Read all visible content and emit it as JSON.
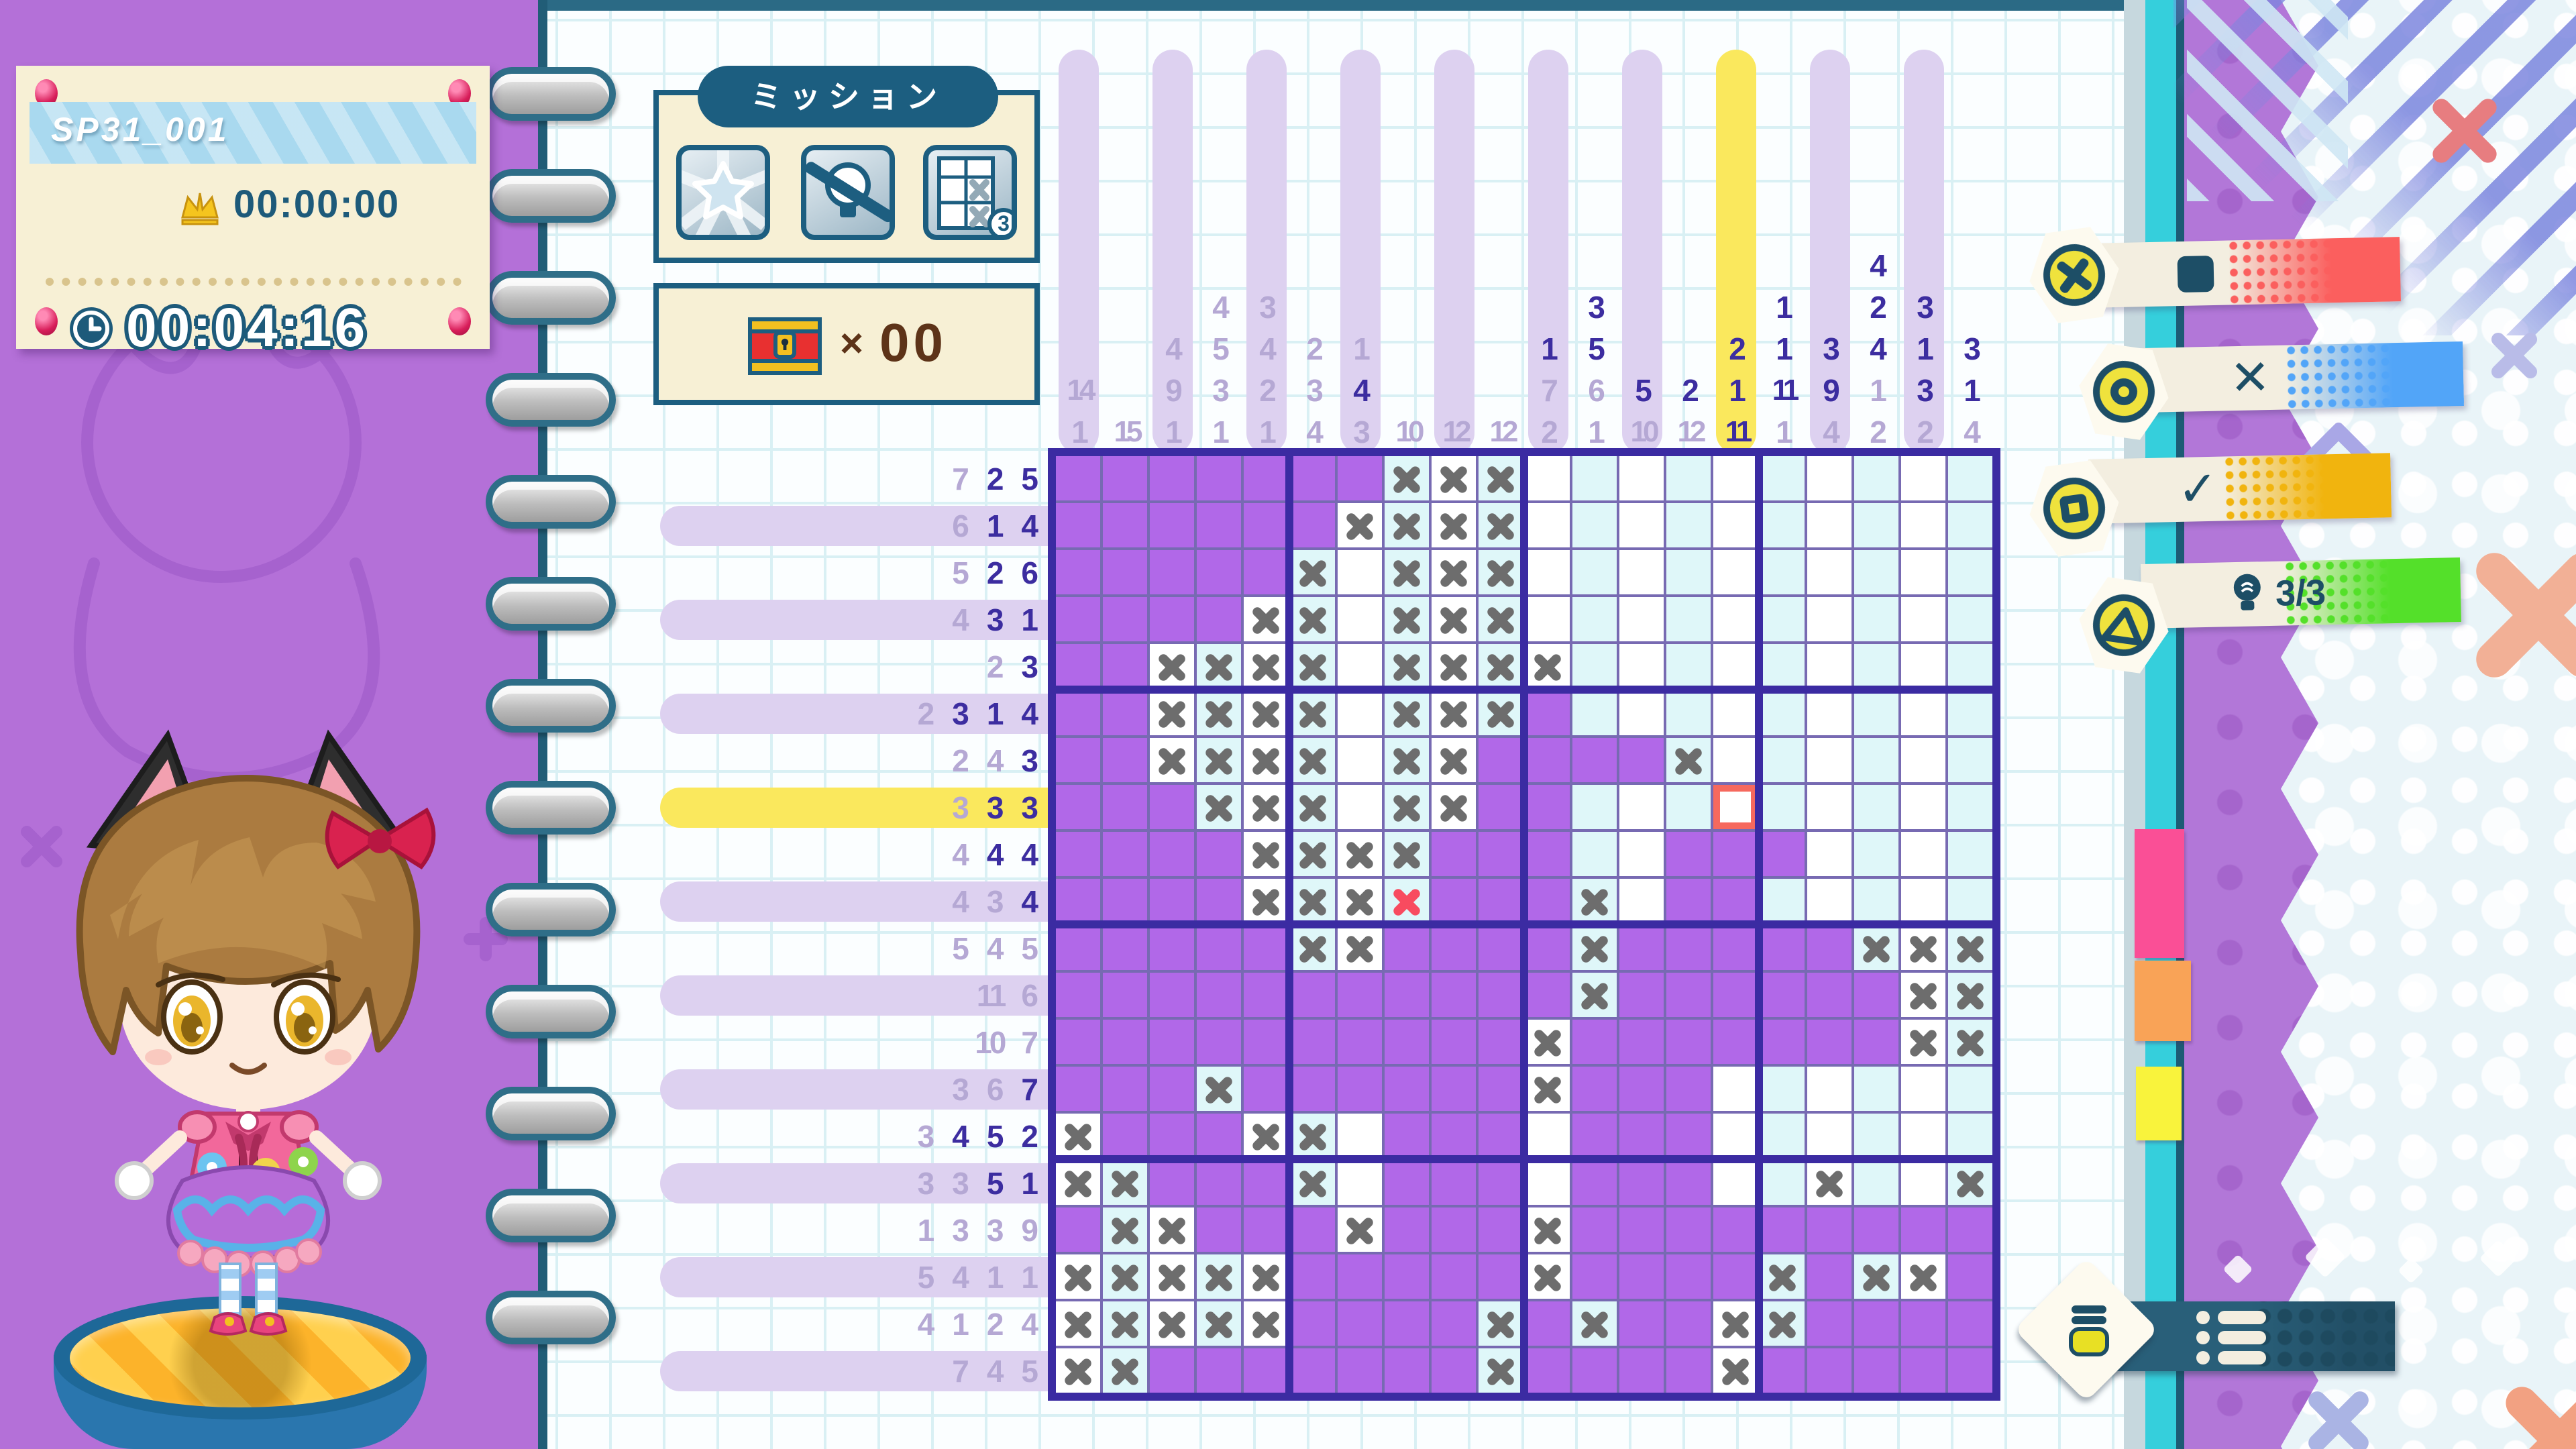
{
  "hud": {
    "puzzle_id": "SP31_001",
    "best_time": "00:00:00",
    "current_time": "00:04:16"
  },
  "mission": {
    "header": "ミッション",
    "icons": [
      "star-badge-icon",
      "no-hint-icon",
      "x-limit-icon"
    ],
    "x_limit_count": "3"
  },
  "treasure": {
    "times": "×",
    "count": "00"
  },
  "legend": {
    "items": [
      {
        "button": "cross-button",
        "meaning": "fill-cell",
        "label": "",
        "color": "#fb5f5e"
      },
      {
        "button": "circle-button",
        "meaning": "mark-x",
        "label": "✕",
        "color": "#52a5f8"
      },
      {
        "button": "square-button",
        "meaning": "mark-check",
        "label": "✓",
        "color": "#f1b40e"
      },
      {
        "button": "triangle-button",
        "meaning": "use-hint",
        "label": "3/3",
        "color": "#54e02a"
      }
    ]
  },
  "puzzle": {
    "size": 20,
    "cursor": {
      "row": 8,
      "col": 15
    },
    "col_clues": [
      [
        [
          14,
          1
        ],
        [
          1,
          1
        ]
      ],
      [
        [
          15,
          1
        ]
      ],
      [
        [
          4,
          1
        ],
        [
          9,
          1
        ],
        [
          1,
          1
        ]
      ],
      [
        [
          4,
          1
        ],
        [
          5,
          1
        ],
        [
          3,
          1
        ],
        [
          1,
          1
        ]
      ],
      [
        [
          3,
          1
        ],
        [
          4,
          1
        ],
        [
          2,
          1
        ],
        [
          1,
          1
        ]
      ],
      [
        [
          2,
          1
        ],
        [
          3,
          1
        ],
        [
          4,
          1
        ]
      ],
      [
        [
          1,
          1
        ],
        [
          4,
          0
        ],
        [
          3,
          1
        ]
      ],
      [
        [
          10,
          1
        ]
      ],
      [
        [
          12,
          1
        ]
      ],
      [
        [
          12,
          1
        ]
      ],
      [
        [
          1,
          0
        ],
        [
          7,
          1
        ],
        [
          2,
          1
        ]
      ],
      [
        [
          3,
          0
        ],
        [
          5,
          0
        ],
        [
          6,
          1
        ],
        [
          1,
          1
        ]
      ],
      [
        [
          5,
          0
        ],
        [
          10,
          1
        ]
      ],
      [
        [
          2,
          0
        ],
        [
          12,
          1
        ]
      ],
      [
        [
          2,
          0
        ],
        [
          1,
          0
        ],
        [
          11,
          0
        ]
      ],
      [
        [
          1,
          0
        ],
        [
          1,
          0
        ],
        [
          11,
          0
        ],
        [
          1,
          1
        ]
      ],
      [
        [
          3,
          0
        ],
        [
          9,
          0
        ],
        [
          4,
          1
        ]
      ],
      [
        [
          4,
          0
        ],
        [
          2,
          0
        ],
        [
          4,
          0
        ],
        [
          1,
          1
        ],
        [
          2,
          1
        ]
      ],
      [
        [
          3,
          0
        ],
        [
          1,
          0
        ],
        [
          3,
          0
        ],
        [
          2,
          1
        ]
      ],
      [
        [
          3,
          0
        ],
        [
          1,
          0
        ],
        [
          4,
          1
        ]
      ]
    ],
    "row_clues": [
      [
        [
          7,
          1
        ],
        [
          2,
          0
        ],
        [
          5,
          0
        ]
      ],
      [
        [
          6,
          1
        ],
        [
          1,
          0
        ],
        [
          4,
          0
        ]
      ],
      [
        [
          5,
          1
        ],
        [
          2,
          0
        ],
        [
          6,
          0
        ]
      ],
      [
        [
          4,
          1
        ],
        [
          3,
          0
        ],
        [
          1,
          0
        ]
      ],
      [
        [
          2,
          1
        ],
        [
          3,
          0
        ]
      ],
      [
        [
          2,
          1
        ],
        [
          3,
          0
        ],
        [
          1,
          0
        ],
        [
          4,
          0
        ]
      ],
      [
        [
          2,
          1
        ],
        [
          4,
          1
        ],
        [
          3,
          0
        ]
      ],
      [
        [
          3,
          1
        ],
        [
          3,
          0
        ],
        [
          3,
          0
        ]
      ],
      [
        [
          4,
          1
        ],
        [
          4,
          0
        ],
        [
          4,
          0
        ]
      ],
      [
        [
          4,
          1
        ],
        [
          3,
          1
        ],
        [
          4,
          0
        ]
      ],
      [
        [
          5,
          1
        ],
        [
          4,
          1
        ],
        [
          5,
          1
        ]
      ],
      [
        [
          11,
          1
        ],
        [
          6,
          1
        ]
      ],
      [
        [
          10,
          1
        ],
        [
          7,
          1
        ]
      ],
      [
        [
          3,
          1
        ],
        [
          6,
          1
        ],
        [
          7,
          0
        ]
      ],
      [
        [
          3,
          1
        ],
        [
          4,
          0
        ],
        [
          5,
          0
        ],
        [
          2,
          0
        ]
      ],
      [
        [
          3,
          1
        ],
        [
          3,
          1
        ],
        [
          5,
          0
        ],
        [
          1,
          0
        ]
      ],
      [
        [
          1,
          1
        ],
        [
          3,
          1
        ],
        [
          3,
          1
        ],
        [
          9,
          1
        ]
      ],
      [
        [
          5,
          1
        ],
        [
          4,
          1
        ],
        [
          1,
          1
        ],
        [
          1,
          1
        ]
      ],
      [
        [
          4,
          1
        ],
        [
          1,
          1
        ],
        [
          2,
          1
        ],
        [
          4,
          1
        ]
      ],
      [
        [
          7,
          1
        ],
        [
          4,
          1
        ],
        [
          5,
          1
        ]
      ]
    ],
    "cells": [
      "FFFFFFFXXX..........",
      "FFFFFFXXXX..........",
      "FFFFFX.XXX..........",
      "FFFFXX.XXX..........",
      "FFXXXX.XXXX.........",
      "FFXXXX.XXXF.........",
      "FFXXXX.XXFFFFX......",
      "FFFXXX.XXFF...U.....",
      "FFFFXXXXFFF..FFF....",
      "FFFFXXXRFFFX.FF.....",
      "FFFFFXXFFFFXFFFFFXXX",
      "FFFFFFFFFFFXFFFFFFXX",
      "FFFFFFFFFFXFFFFFFFXX",
      "FFFXFFFFFFXFFF......",
      "XFFFXX.FFF.FFF......",
      "XXFFFX.FFF.FFF..X..X",
      "FXXFFFXFFFXFFFFFFFFF",
      "XXXXXFFFFFXFFFFXFXXF",
      "XXXXXFFFFXFXFFXXFFFF",
      "XXFFFFFFFXFFFFXFFFFF"
    ]
  },
  "colors": {
    "background_purple": "#b470d8",
    "cell_fill": "#b168e8",
    "cell_cyan": "#dff7f9",
    "stripe_lavender": "#ddd1f0",
    "highlight_yellow": "#fae85d",
    "clue_done": "#b5a8d4",
    "clue_pending": "#3c2da0",
    "x_gray": "#6d6d6d",
    "x_red": "#f84b5f",
    "cursor_red": "#f6695e",
    "legend_red": "#fb5f5e",
    "legend_blue": "#52a5f8",
    "legend_amber": "#f1b40e",
    "legend_green": "#54e02a",
    "tab_pink": "#fa4f96",
    "tab_orange": "#f9a357",
    "tab_yellow": "#f9f33c"
  }
}
